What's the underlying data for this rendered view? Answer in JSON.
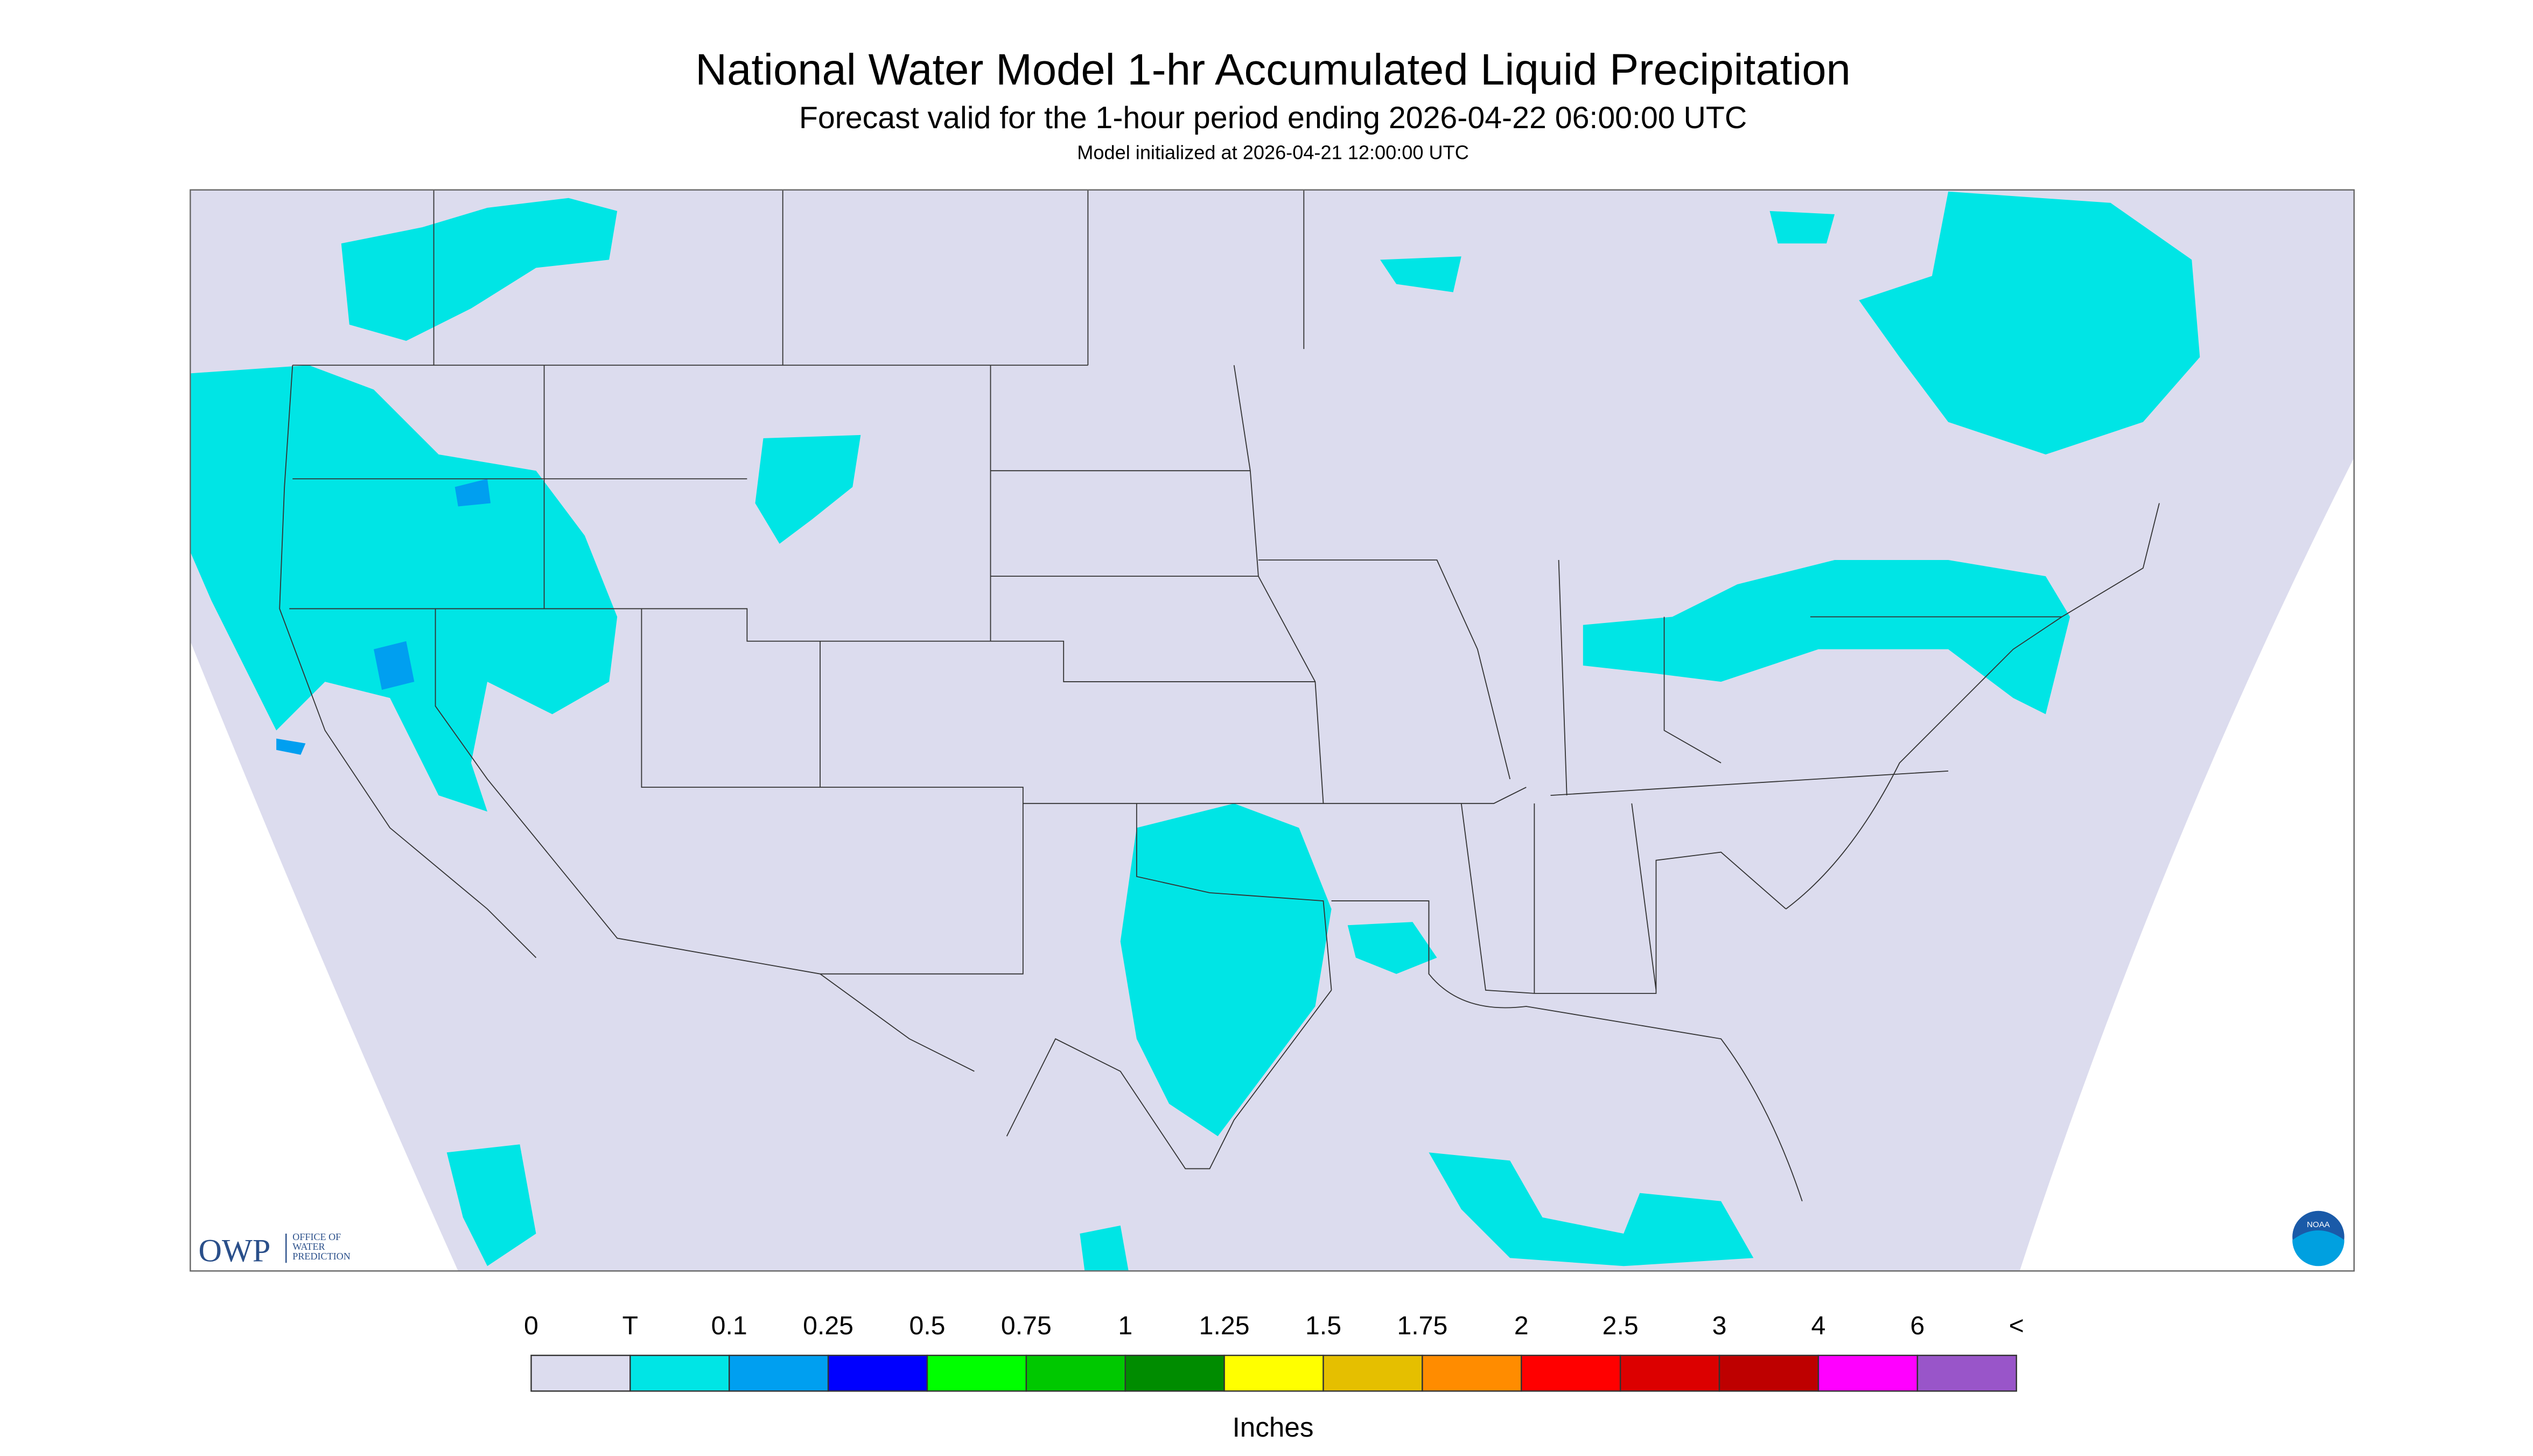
{
  "header": {
    "title": "National Water Model 1-hr Accumulated Liquid Precipitation",
    "subtitle": "Forecast valid for the 1-hour period ending 2026-04-22 06:00:00 UTC",
    "init": "Model initialized at 2026-04-21 12:00:00 UTC"
  },
  "logos": {
    "owp": "OWP",
    "owp_lines": [
      "OFFICE OF",
      "WATER",
      "PREDICTION"
    ],
    "noaa": "NOAA"
  },
  "legend": {
    "labels": [
      "0",
      "T",
      "0.1",
      "0.25",
      "0.5",
      "0.75",
      "1",
      "1.25",
      "1.5",
      "1.75",
      "2",
      "2.5",
      "3",
      "4",
      "6",
      "<"
    ],
    "colors": [
      "#dcdcee",
      "#00e5e5",
      "#009ff0",
      "#0000ff",
      "#00ff00",
      "#00c800",
      "#008c00",
      "#ffff00",
      "#e5bf00",
      "#ff8c00",
      "#ff0000",
      "#dc0000",
      "#be0000",
      "#ff00ff",
      "#9955c9"
    ],
    "units": "Inches"
  }
}
